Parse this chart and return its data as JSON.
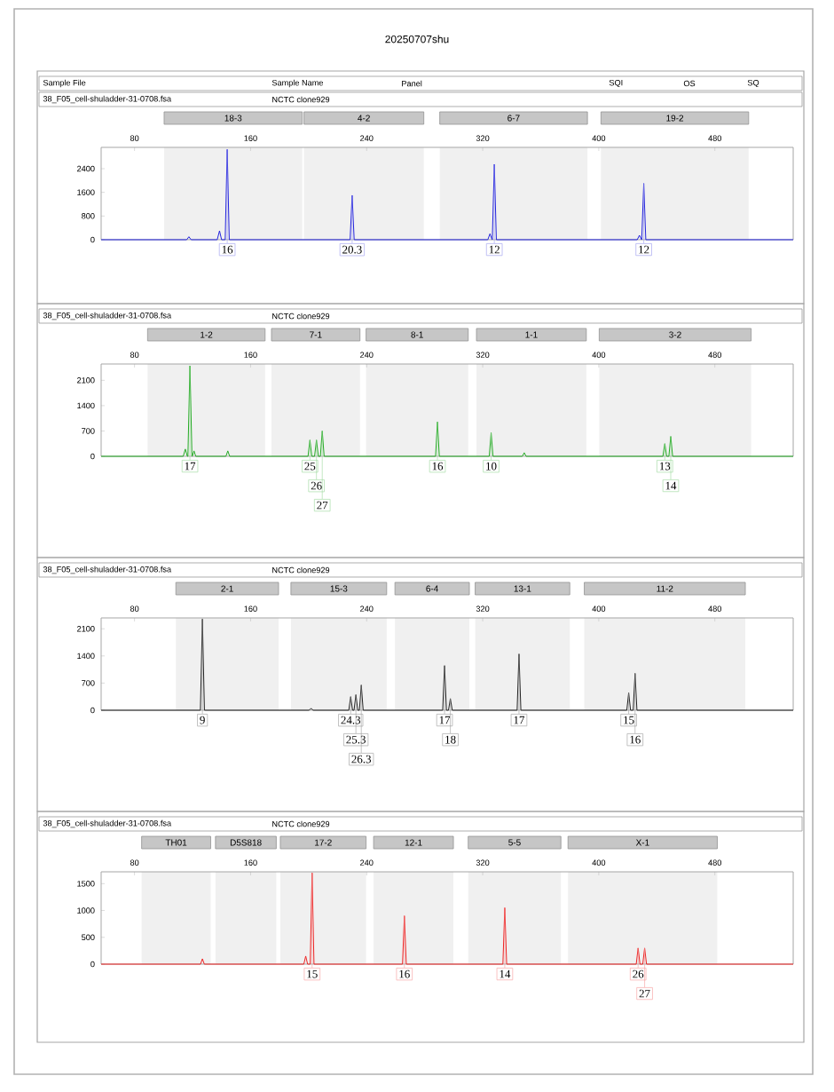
{
  "chart_data": [
    {
      "type": "line",
      "title": "20250707shu",
      "annotations": [
        "Sample File",
        "Sample Name",
        "Panel",
        "SQI",
        "OS",
        "SQ",
        "38_F05_cell-shuladder-31-0708.fsa",
        "NCTC clone929",
        {
          "text": "16",
          "x": 143.9,
          "y": 3050
        },
        {
          "text": "20.3",
          "x": 230,
          "y": 1500
        },
        {
          "text": "12",
          "x": 328,
          "y": 2550
        },
        {
          "text": "12",
          "x": 431,
          "y": 1900
        }
      ],
      "x": [
        57,
        116,
        117.5,
        119,
        137,
        138.6,
        140,
        142.5,
        143.9,
        145.3,
        228.6,
        230,
        231.4,
        323.5,
        325,
        326.5,
        326.6,
        328,
        329.4,
        426.5,
        428,
        429.5,
        429.6,
        431,
        432.4,
        534
      ],
      "series": [
        {
          "color": "#2222dd",
          "values": [
            0,
            0,
            100,
            0,
            0,
            300,
            0,
            0,
            3050,
            0,
            0,
            1500,
            0,
            0,
            200,
            0,
            0,
            2550,
            0,
            0,
            150,
            0,
            0,
            1900,
            0,
            0
          ]
        }
      ],
      "xlim": [
        57,
        534
      ],
      "xticks": [
        80,
        160,
        240,
        320,
        400,
        480
      ],
      "ylim": [
        0,
        3120
      ],
      "yticks": [
        0,
        800,
        1600,
        2400
      ],
      "bands": [
        {
          "axis": "x",
          "from": 100.4,
          "to": 195.6,
          "label": "18-3"
        },
        {
          "axis": "x",
          "from": 196.8,
          "to": 279.4,
          "label": "4-2"
        },
        {
          "axis": "x",
          "from": 290.4,
          "to": 392.2,
          "label": "6-7"
        },
        {
          "axis": "x",
          "from": 401.5,
          "to": 503.3,
          "label": "19-2"
        }
      ]
    },
    {
      "type": "line",
      "annotations": [
        "38_F05_cell-shuladder-31-0708.fsa",
        "NCTC clone929",
        {
          "text": "17",
          "x": 118.2,
          "y": 2500
        },
        {
          "text": "25",
          "x": 200.9,
          "y": 450
        },
        {
          "text": "26",
          "x": 205.4,
          "y": 450
        },
        {
          "text": "27",
          "x": 209.4,
          "y": 700
        },
        {
          "text": "16",
          "x": 288.8,
          "y": 950
        },
        {
          "text": "10",
          "x": 325.8,
          "y": 650
        },
        {
          "text": "13",
          "x": 445.5,
          "y": 350
        },
        {
          "text": "14",
          "x": 449.6,
          "y": 550
        }
      ],
      "x": [
        57,
        113.6,
        115,
        116.4,
        116.8,
        118.2,
        119.6,
        119.8,
        121,
        122.2,
        143,
        144.3,
        145.6,
        199.6,
        200.9,
        202.2,
        204.1,
        205.4,
        206.7,
        208.1,
        209.4,
        210.7,
        287.5,
        288.8,
        290.1,
        324.5,
        325.8,
        327.1,
        347.3,
        348.6,
        349.9,
        444.2,
        445.5,
        446.8,
        448.3,
        449.6,
        450.9,
        534
      ],
      "series": [
        {
          "color": "#22aa22",
          "values": [
            0,
            0,
            200,
            0,
            0,
            2500,
            0,
            0,
            150,
            0,
            0,
            150,
            0,
            0,
            450,
            0,
            0,
            450,
            0,
            0,
            700,
            0,
            0,
            950,
            0,
            0,
            650,
            0,
            0,
            100,
            0,
            0,
            350,
            0,
            0,
            550,
            0,
            0
          ]
        }
      ],
      "xlim": [
        57,
        534
      ],
      "xticks": [
        80,
        160,
        240,
        320,
        400,
        480
      ],
      "ylim": [
        0,
        2550
      ],
      "yticks": [
        0,
        700,
        1400,
        2100
      ],
      "bands": [
        {
          "axis": "x",
          "from": 89,
          "to": 170,
          "label": "1-2"
        },
        {
          "axis": "x",
          "from": 174.4,
          "to": 235.4,
          "label": "7-1"
        },
        {
          "axis": "x",
          "from": 239.6,
          "to": 310,
          "label": "8-1"
        },
        {
          "axis": "x",
          "from": 315.7,
          "to": 391.4,
          "label": "1-1"
        },
        {
          "axis": "x",
          "from": 400.3,
          "to": 505,
          "label": "3-2"
        }
      ]
    },
    {
      "type": "line",
      "annotations": [
        "38_F05_cell-shuladder-31-0708.fsa",
        "NCTC clone929",
        {
          "text": "9",
          "x": 126.8,
          "y": 2350
        },
        {
          "text": "24.3",
          "x": 229,
          "y": 350
        },
        {
          "text": "25.3",
          "x": 232.6,
          "y": 400
        },
        {
          "text": "26.3",
          "x": 236.3,
          "y": 650
        },
        {
          "text": "17",
          "x": 293.7,
          "y": 1150
        },
        {
          "text": "18",
          "x": 297.7,
          "y": 300
        },
        {
          "text": "17",
          "x": 345,
          "y": 1450
        },
        {
          "text": "15",
          "x": 420.6,
          "y": 450
        },
        {
          "text": "16",
          "x": 425,
          "y": 950
        }
      ],
      "x": [
        57,
        125.4,
        126.8,
        128.2,
        200.4,
        201.7,
        203,
        227.7,
        229,
        230.3,
        231.3,
        232.6,
        233.9,
        235,
        236.3,
        237.6,
        292.4,
        293.7,
        295,
        296.4,
        297.7,
        299,
        343.7,
        345,
        346.3,
        419.3,
        420.6,
        421.9,
        423.7,
        425,
        426.3,
        534
      ],
      "series": [
        {
          "color": "#222222",
          "values": [
            0,
            0,
            2350,
            0,
            0,
            50,
            0,
            0,
            350,
            0,
            0,
            400,
            0,
            0,
            650,
            0,
            0,
            1150,
            0,
            0,
            300,
            0,
            0,
            1450,
            0,
            0,
            450,
            0,
            0,
            950,
            0,
            0
          ]
        }
      ],
      "xlim": [
        57,
        534
      ],
      "xticks": [
        80,
        160,
        240,
        320,
        400,
        480
      ],
      "ylim": [
        0,
        2380
      ],
      "yticks": [
        0,
        700,
        1400,
        2100
      ],
      "bands": [
        {
          "axis": "x",
          "from": 108.5,
          "to": 179.3,
          "label": "2-1"
        },
        {
          "axis": "x",
          "from": 187.8,
          "to": 253.8,
          "label": "15-3"
        },
        {
          "axis": "x",
          "from": 259.5,
          "to": 310.8,
          "label": "6-4"
        },
        {
          "axis": "x",
          "from": 314.8,
          "to": 380,
          "label": "13-1"
        },
        {
          "axis": "x",
          "from": 390,
          "to": 501,
          "label": "11-2"
        }
      ]
    },
    {
      "type": "line",
      "annotations": [
        "38_F05_cell-shuladder-31-0708.fsa",
        "NCTC clone929",
        {
          "text": "15",
          "x": 202.4,
          "y": 1700
        },
        {
          "text": "16",
          "x": 266,
          "y": 900
        },
        {
          "text": "14",
          "x": 335.2,
          "y": 1050
        },
        {
          "text": "26",
          "x": 427.1,
          "y": 300
        },
        {
          "text": "27",
          "x": 431.6,
          "y": 300
        }
      ],
      "x": [
        57,
        125.5,
        126.8,
        128.1,
        196.7,
        198,
        199.3,
        201.1,
        202.4,
        203.7,
        264.7,
        266,
        267.3,
        333.9,
        335.2,
        336.5,
        425.8,
        427.1,
        428.4,
        430.3,
        431.6,
        432.9,
        534
      ],
      "series": [
        {
          "color": "#ee2222",
          "values": [
            0,
            0,
            100,
            0,
            0,
            150,
            0,
            0,
            1700,
            0,
            0,
            900,
            0,
            0,
            1050,
            0,
            0,
            300,
            0,
            0,
            300,
            0,
            0
          ]
        }
      ],
      "xlim": [
        57,
        534
      ],
      "xticks": [
        80,
        160,
        240,
        320,
        400,
        480
      ],
      "ylim": [
        0,
        1720
      ],
      "yticks": [
        0,
        500,
        1000,
        1500
      ],
      "bands": [
        {
          "axis": "x",
          "from": 84.9,
          "to": 132.5,
          "label": "TH01"
        },
        {
          "axis": "x",
          "from": 135.8,
          "to": 177.7,
          "label": "D5S818"
        },
        {
          "axis": "x",
          "from": 180.5,
          "to": 239.6,
          "label": "17-2"
        },
        {
          "axis": "x",
          "from": 244.8,
          "to": 299.8,
          "label": "12-1"
        },
        {
          "axis": "x",
          "from": 310,
          "to": 373.9,
          "label": "5-5"
        },
        {
          "axis": "x",
          "from": 378.8,
          "to": 481.7,
          "label": "X-1"
        }
      ]
    }
  ]
}
